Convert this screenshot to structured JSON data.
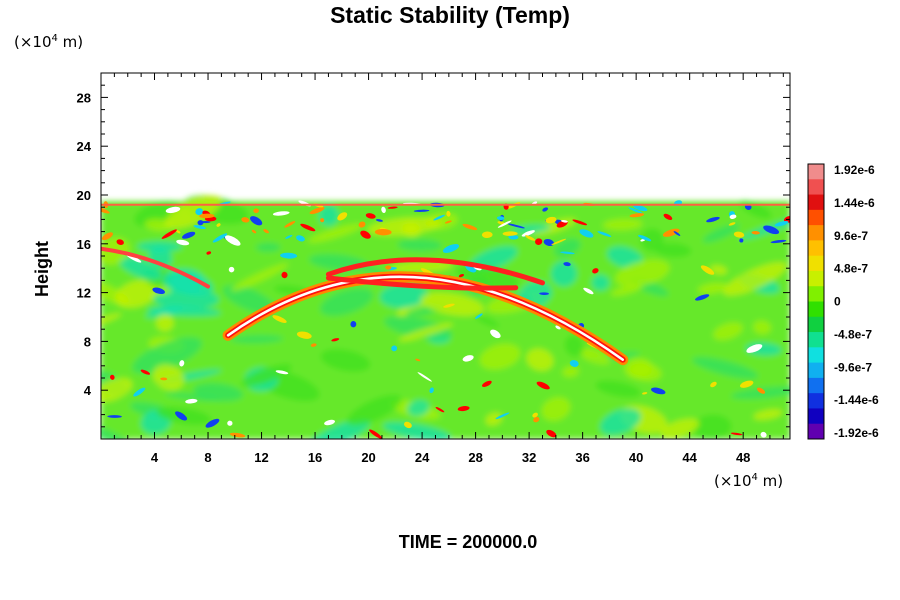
{
  "chart_data": {
    "type": "heatmap",
    "title": "Static Stability (Temp)",
    "ylabel": "Height",
    "xlabel": "",
    "x_unit": {
      "prefix": "(×10",
      "exp": "4",
      "suffix": " m)"
    },
    "y_unit": {
      "prefix": "(×10",
      "exp": "4",
      "suffix": " m)"
    },
    "xlim": [
      0,
      51.5
    ],
    "ylim": [
      0,
      30
    ],
    "x_ticks": [
      "4",
      "8",
      "12",
      "16",
      "20",
      "24",
      "28",
      "32",
      "36",
      "40",
      "44",
      "48"
    ],
    "y_ticks": [
      "4",
      "8",
      "12",
      "16",
      "20",
      "24",
      "28"
    ],
    "data_top_height": 19.5,
    "colorbar": {
      "labels": [
        "1.92e-6",
        "1.44e-6",
        "9.6e-7",
        "4.8e-7",
        "0",
        "-4.8e-7",
        "-9.6e-7",
        "-1.44e-6",
        "-1.92e-6"
      ],
      "colors": [
        "#f08c8c",
        "#f05050",
        "#e01010",
        "#ff5000",
        "#ff9000",
        "#ffc000",
        "#f0e000",
        "#c8f000",
        "#80f000",
        "#30e000",
        "#10d040",
        "#10e090",
        "#10e0e0",
        "#10b0f0",
        "#1070f0",
        "#1030e0",
        "#1000c0",
        "#6000b0"
      ]
    },
    "footer": "TIME = 200000.0"
  }
}
